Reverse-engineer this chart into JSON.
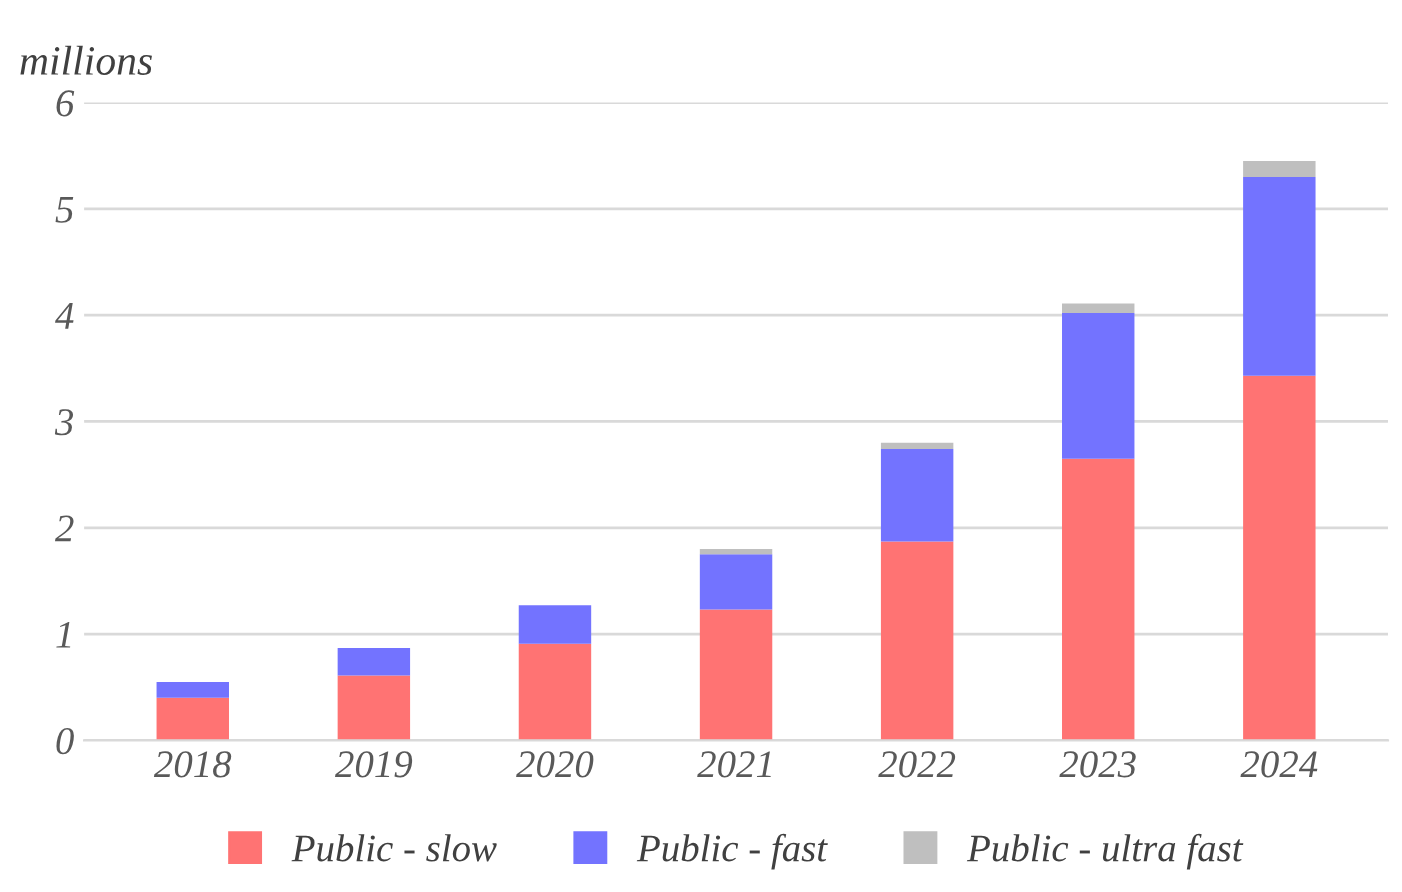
{
  "chart_data": {
    "type": "bar",
    "stacked": true,
    "ylabel": "millions",
    "categories": [
      "2018",
      "2019",
      "2020",
      "2021",
      "2022",
      "2023",
      "2024"
    ],
    "series": [
      {
        "name": "Public - slow",
        "color": "#ff7373",
        "values": [
          0.4,
          0.61,
          0.91,
          1.23,
          1.87,
          2.65,
          3.43
        ]
      },
      {
        "name": "Public - fast",
        "color": "#7373ff",
        "values": [
          0.15,
          0.26,
          0.36,
          0.52,
          0.87,
          1.37,
          1.87
        ]
      },
      {
        "name": "Public - ultra fast",
        "color": "#bfbfbf",
        "values": [
          null,
          null,
          null,
          0.05,
          0.06,
          0.09,
          0.15
        ]
      }
    ],
    "ylim": [
      0,
      6
    ],
    "yticks": [
      0,
      1,
      2,
      3,
      4,
      5,
      6
    ],
    "grid": "y",
    "legend": "bottom"
  }
}
